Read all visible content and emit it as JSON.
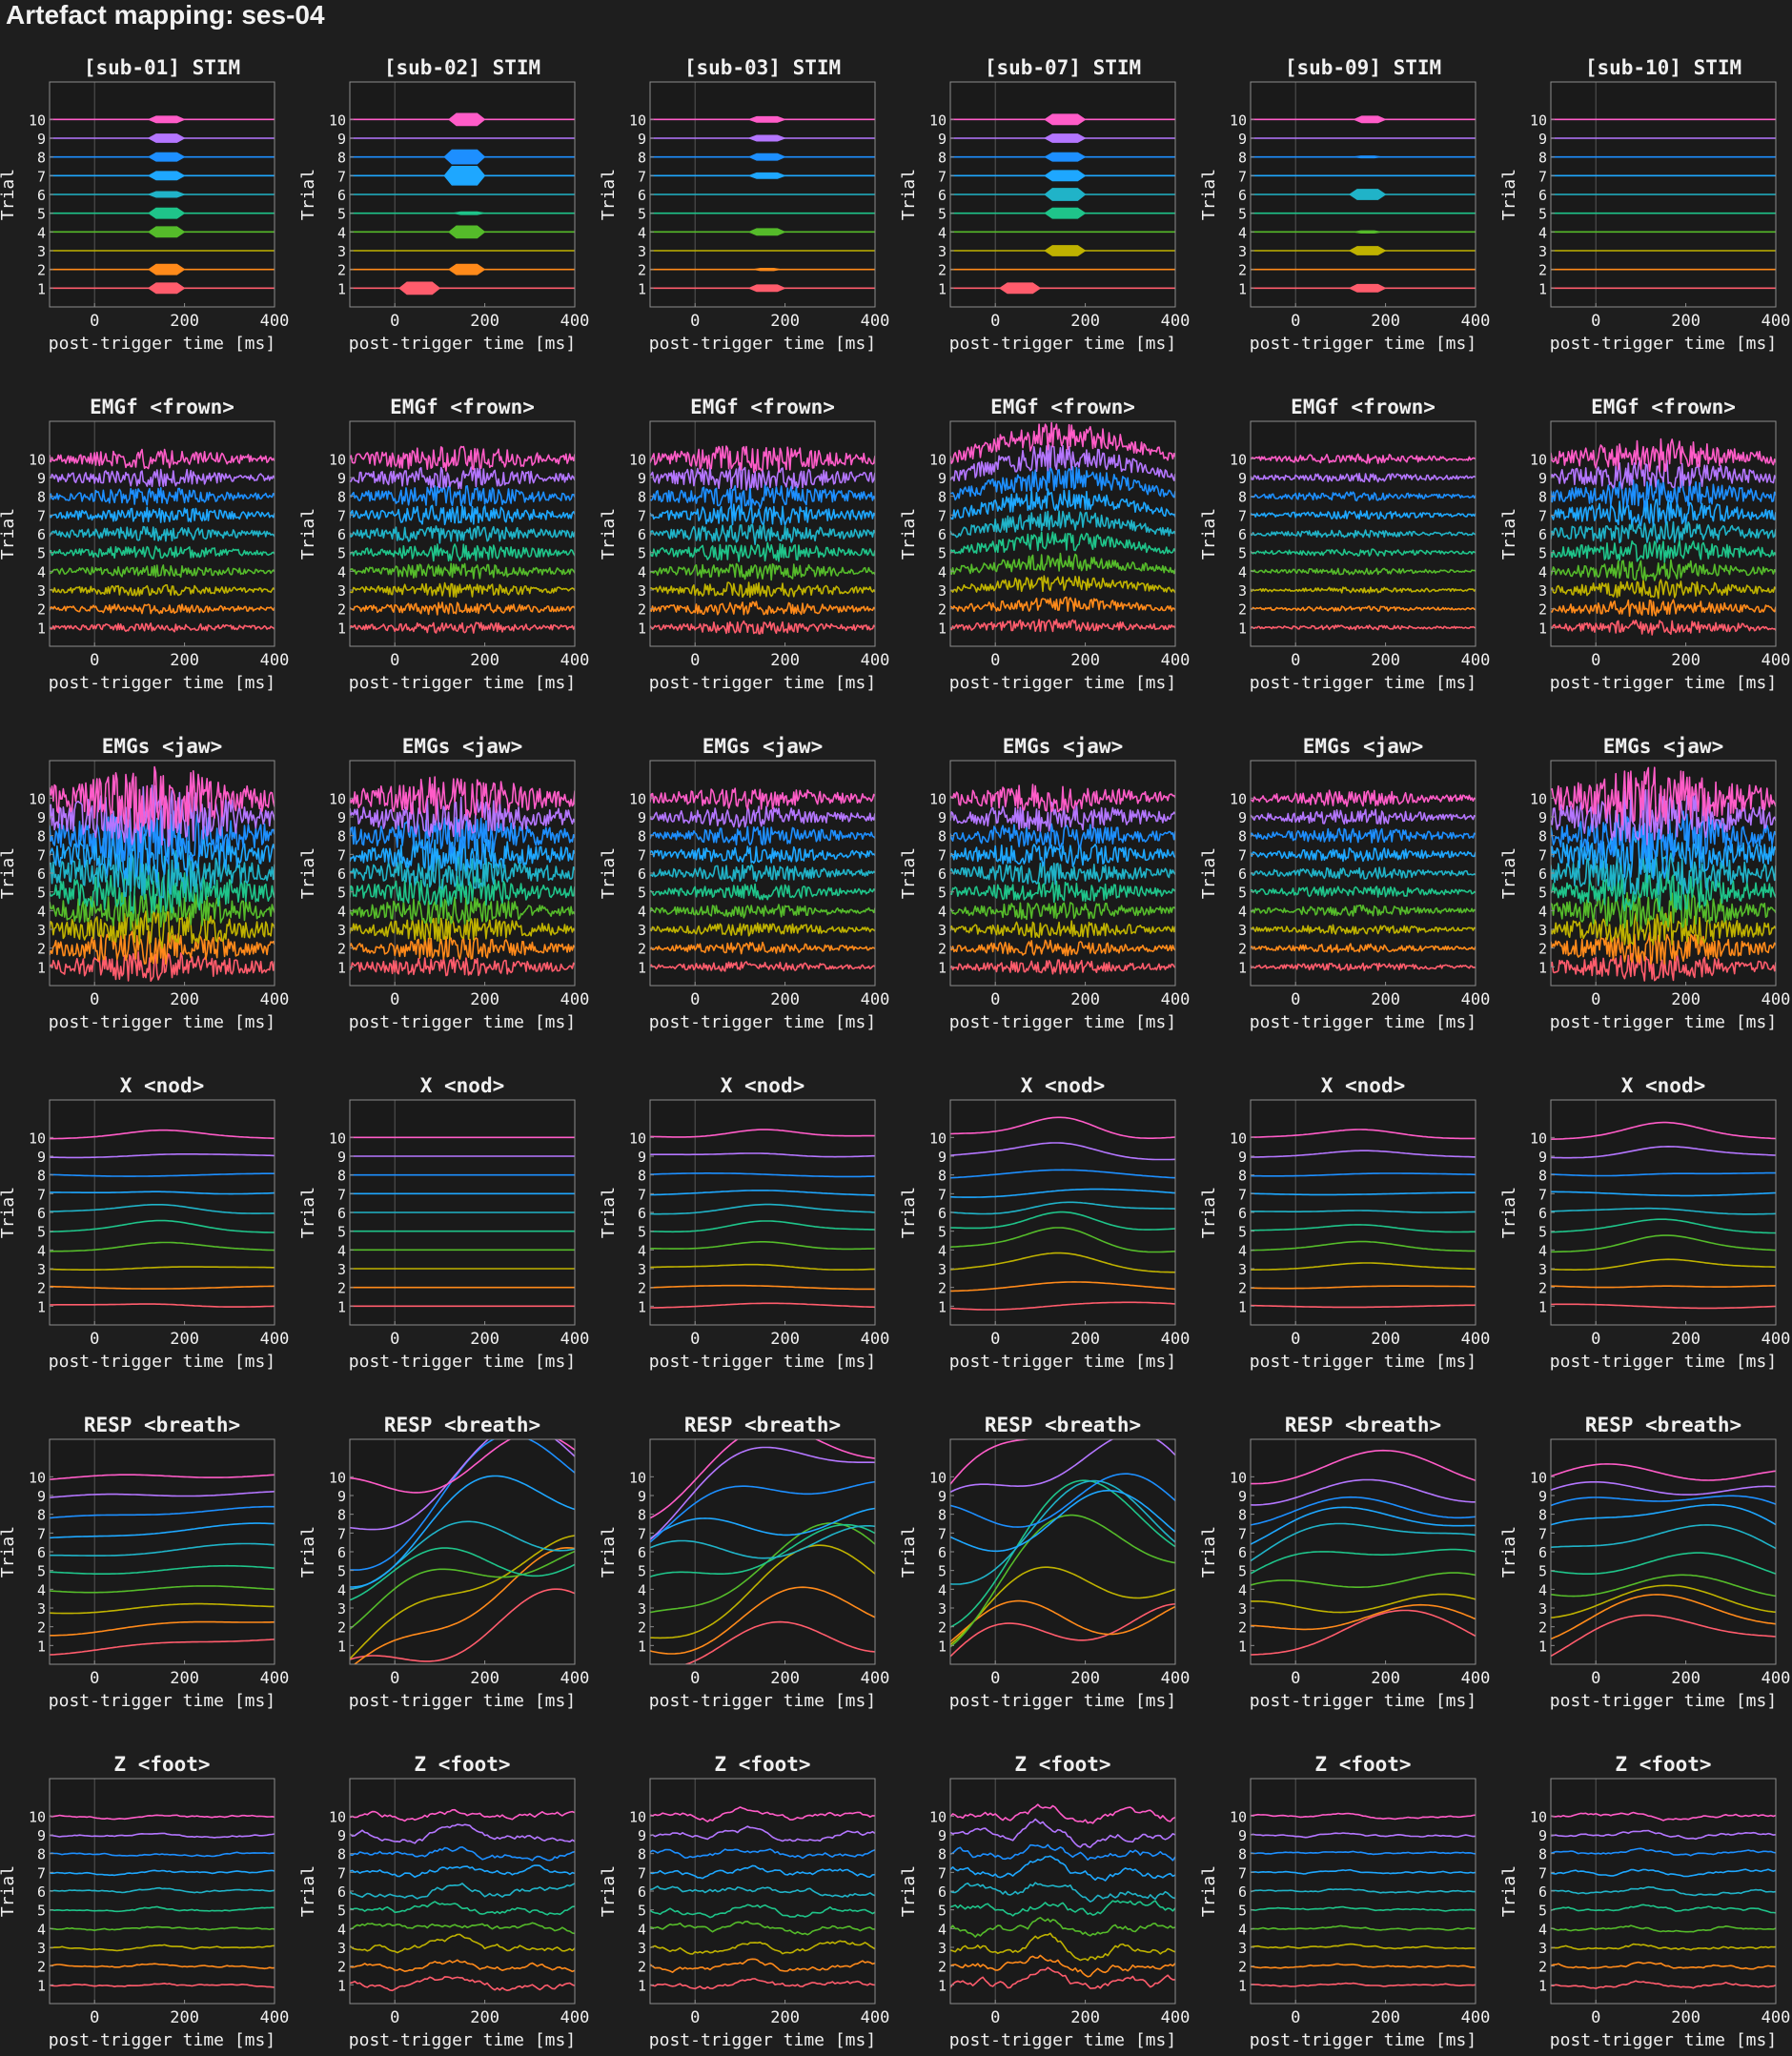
{
  "page": {
    "title": "Artefact mapping: ses-04"
  },
  "colors": {
    "background": "#1e1e1e",
    "axes_bg": "#1a1a1a",
    "axes_edge": "#8c8c8c",
    "text": "#f0f0f0",
    "trigger_line": "#555555",
    "trials": [
      "#ff5c6c",
      "#ff8a1a",
      "#bfb200",
      "#55bb2a",
      "#1fc48a",
      "#20b3c8",
      "#1ea7ff",
      "#1d8fff",
      "#b476ff",
      "#ff5cc8"
    ]
  },
  "chart_data": {
    "type": "grid",
    "layout": {
      "rows": 6,
      "cols": 6
    },
    "xlim": [
      -100,
      400
    ],
    "xticks": [
      0,
      200,
      400
    ],
    "xlabel": "post-trigger time [ms]",
    "ylabel": "Trial",
    "yticks": [
      1,
      2,
      3,
      4,
      5,
      6,
      7,
      8,
      9,
      10
    ],
    "ylim": [
      0,
      12
    ],
    "subjects": [
      "sub-01",
      "sub-02",
      "sub-03",
      "sub-07",
      "sub-09",
      "sub-10"
    ],
    "rows": [
      {
        "key": "stim",
        "style": "pulses",
        "titles": [
          "[sub-01] STIM",
          "[sub-02] STIM",
          "[sub-03] STIM",
          "[sub-07] STIM",
          "[sub-09] STIM",
          "[sub-10] STIM"
        ],
        "pulses": [
          [
            [
              1,
              120,
              200,
              0.55
            ],
            [
              2,
              120,
              200,
              0.55
            ],
            [
              4,
              120,
              200,
              0.55
            ],
            [
              5,
              120,
              200,
              0.55
            ],
            [
              6,
              120,
              200,
              0.3
            ],
            [
              7,
              120,
              200,
              0.45
            ],
            [
              8,
              120,
              200,
              0.45
            ],
            [
              9,
              120,
              200,
              0.45
            ],
            [
              10,
              120,
              200,
              0.35
            ]
          ],
          [
            [
              1,
              10,
              100,
              0.65
            ],
            [
              2,
              120,
              200,
              0.55
            ],
            [
              4,
              120,
              200,
              0.65
            ],
            [
              5,
              130,
              200,
              0.15
            ],
            [
              7,
              110,
              200,
              1.0
            ],
            [
              8,
              110,
              200,
              0.75
            ],
            [
              10,
              120,
              200,
              0.65
            ]
          ],
          [
            [
              1,
              120,
              200,
              0.35
            ],
            [
              2,
              130,
              190,
              0.12
            ],
            [
              4,
              120,
              200,
              0.35
            ],
            [
              7,
              120,
              200,
              0.3
            ],
            [
              8,
              120,
              200,
              0.35
            ],
            [
              9,
              120,
              200,
              0.3
            ],
            [
              10,
              120,
              200,
              0.3
            ]
          ],
          [
            [
              1,
              10,
              100,
              0.55
            ],
            [
              3,
              110,
              200,
              0.55
            ],
            [
              5,
              110,
              200,
              0.55
            ],
            [
              6,
              110,
              200,
              0.65
            ],
            [
              7,
              110,
              200,
              0.55
            ],
            [
              8,
              110,
              200,
              0.45
            ],
            [
              9,
              110,
              200,
              0.45
            ],
            [
              10,
              110,
              200,
              0.55
            ]
          ],
          [
            [
              1,
              120,
              200,
              0.4
            ],
            [
              3,
              120,
              200,
              0.45
            ],
            [
              4,
              130,
              190,
              0.12
            ],
            [
              6,
              120,
              200,
              0.55
            ],
            [
              8,
              130,
              190,
              0.1
            ],
            [
              10,
              130,
              200,
              0.35
            ]
          ],
          []
        ]
      },
      {
        "key": "emgf",
        "style": "noise",
        "titles": [
          "EMGf <frown>",
          "EMGf <frown>",
          "EMGf <frown>",
          "EMGf <frown>",
          "EMGf <frown>",
          "EMGf <frown>"
        ],
        "noise": [
          0.35,
          0.45,
          0.5,
          0.5,
          0.18,
          0.6
        ],
        "drift": [
          0.0,
          0.0,
          0.0,
          0.6,
          0.0,
          0.1
        ],
        "seed": [
          11,
          12,
          13,
          14,
          15,
          16
        ]
      },
      {
        "key": "emgs",
        "style": "noise",
        "titles": [
          "EMGs <jaw>",
          "EMGs <jaw>",
          "EMGs <jaw>",
          "EMGs <jaw>",
          "EMGs <jaw>",
          "EMGs <jaw>"
        ],
        "noise": [
          1.2,
          0.8,
          0.4,
          0.55,
          0.3,
          1.1
        ],
        "drift": [
          0.0,
          0.0,
          0.0,
          0.0,
          0.0,
          0.0
        ],
        "seed": [
          21,
          22,
          23,
          24,
          25,
          26
        ]
      },
      {
        "key": "nod",
        "style": "smooth",
        "titles": [
          "X <nod>",
          "X <nod>",
          "X <nod>",
          "X <nod>",
          "X <nod>",
          "X <nod>"
        ],
        "amp": [
          0.5,
          0.0,
          0.6,
          1.3,
          0.4,
          0.7
        ],
        "seed": [
          31,
          32,
          33,
          34,
          35,
          36
        ]
      },
      {
        "key": "breath",
        "style": "wild",
        "titles": [
          "RESP <breath>",
          "RESP <breath>",
          "RESP <breath>",
          "RESP <breath>",
          "RESP <breath>",
          "RESP <breath>"
        ],
        "amp": [
          0.4,
          3.5,
          2.8,
          4.0,
          1.6,
          1.5
        ],
        "seed": [
          41,
          42,
          43,
          44,
          45,
          46
        ]
      },
      {
        "key": "foot",
        "style": "wiggle",
        "titles": [
          "Z <foot>",
          "Z <foot>",
          "Z <foot>",
          "Z <foot>",
          "Z <foot>",
          "Z <foot>"
        ],
        "amp": [
          0.15,
          0.5,
          0.45,
          0.7,
          0.15,
          0.25
        ],
        "seed": [
          51,
          52,
          53,
          54,
          55,
          56
        ]
      }
    ]
  }
}
